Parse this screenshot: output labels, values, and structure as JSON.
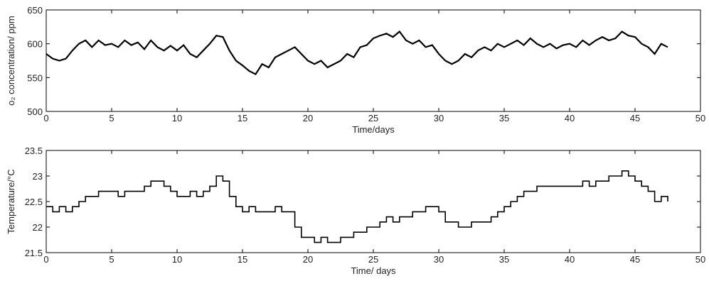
{
  "chart_data": [
    {
      "type": "line",
      "xlabel": "Time/days",
      "ylabel": "o₂ concentration/ ppm",
      "xlim": [
        0,
        50
      ],
      "ylim": [
        500,
        650
      ],
      "xticks": [
        0,
        5,
        10,
        15,
        20,
        25,
        30,
        35,
        40,
        45,
        50
      ],
      "yticks": [
        500,
        550,
        600,
        650
      ],
      "x": [
        0,
        0.5,
        1,
        1.5,
        2,
        2.5,
        3,
        3.5,
        4,
        4.5,
        5,
        5.5,
        6,
        6.5,
        7,
        7.5,
        8,
        8.5,
        9,
        9.5,
        10,
        10.5,
        11,
        11.5,
        12,
        12.5,
        13,
        13.5,
        14,
        14.5,
        15,
        15.5,
        16,
        16.5,
        17,
        17.5,
        18,
        18.5,
        19,
        19.5,
        20,
        20.5,
        21,
        21.5,
        22,
        22.5,
        23,
        23.5,
        24,
        24.5,
        25,
        25.5,
        26,
        26.5,
        27,
        27.5,
        28,
        28.5,
        29,
        29.5,
        30,
        30.5,
        31,
        31.5,
        32,
        32.5,
        33,
        33.5,
        34,
        34.5,
        35,
        35.5,
        36,
        36.5,
        37,
        37.5,
        38,
        38.5,
        39,
        39.5,
        40,
        40.5,
        41,
        41.5,
        42,
        42.5,
        43,
        43.5,
        44,
        44.5,
        45,
        45.5,
        46,
        46.5,
        47,
        47.5
      ],
      "series": [
        {
          "color": "#000000",
          "values": [
            585,
            578,
            575,
            578,
            590,
            600,
            605,
            595,
            605,
            598,
            600,
            595,
            605,
            598,
            602,
            592,
            605,
            595,
            590,
            597,
            590,
            598,
            585,
            580,
            590,
            600,
            612,
            610,
            590,
            575,
            568,
            560,
            555,
            570,
            565,
            580,
            585,
            590,
            595,
            585,
            575,
            570,
            575,
            565,
            570,
            575,
            585,
            580,
            595,
            598,
            608,
            612,
            615,
            610,
            618,
            605,
            600,
            605,
            595,
            598,
            585,
            575,
            570,
            575,
            585,
            580,
            590,
            595,
            590,
            600,
            595,
            600,
            605,
            598,
            608,
            600,
            595,
            600,
            593,
            598,
            600,
            595,
            605,
            598,
            605,
            610,
            605,
            608,
            618,
            612,
            610,
            600,
            595,
            585,
            600,
            595
          ]
        }
      ]
    },
    {
      "type": "line",
      "line_style": "step",
      "xlabel": "Time/ days",
      "ylabel": "Temperature/°C",
      "xlim": [
        0,
        50
      ],
      "ylim": [
        21.5,
        23.5
      ],
      "xticks": [
        0,
        5,
        10,
        15,
        20,
        25,
        30,
        35,
        40,
        45,
        50
      ],
      "yticks": [
        21.5,
        22,
        22.5,
        23,
        23.5
      ],
      "x": [
        0,
        0.5,
        1,
        1.5,
        2,
        2.5,
        3,
        3.5,
        4,
        4.5,
        5,
        5.5,
        6,
        6.5,
        7,
        7.5,
        8,
        8.5,
        9,
        9.5,
        10,
        10.5,
        11,
        11.5,
        12,
        12.5,
        13,
        13.5,
        14,
        14.5,
        15,
        15.5,
        16,
        16.5,
        17,
        17.5,
        18,
        18.5,
        19,
        19.5,
        20,
        20.5,
        21,
        21.5,
        22,
        22.5,
        23,
        23.5,
        24,
        24.5,
        25,
        25.5,
        26,
        26.5,
        27,
        27.5,
        28,
        28.5,
        29,
        29.5,
        30,
        30.5,
        31,
        31.5,
        32,
        32.5,
        33,
        33.5,
        34,
        34.5,
        35,
        35.5,
        36,
        36.5,
        37,
        37.5,
        38,
        38.5,
        39,
        39.5,
        40,
        40.5,
        41,
        41.5,
        42,
        42.5,
        43,
        43.5,
        44,
        44.5,
        45,
        45.5,
        46,
        46.5,
        47,
        47.5
      ],
      "series": [
        {
          "color": "#000000",
          "values": [
            22.4,
            22.3,
            22.4,
            22.3,
            22.4,
            22.5,
            22.6,
            22.6,
            22.7,
            22.7,
            22.7,
            22.6,
            22.7,
            22.7,
            22.7,
            22.8,
            22.9,
            22.9,
            22.8,
            22.7,
            22.6,
            22.6,
            22.7,
            22.6,
            22.7,
            22.8,
            23.0,
            22.9,
            22.6,
            22.4,
            22.3,
            22.4,
            22.3,
            22.3,
            22.3,
            22.4,
            22.3,
            22.3,
            22.0,
            21.8,
            21.8,
            21.7,
            21.8,
            21.7,
            21.7,
            21.8,
            21.8,
            21.9,
            21.9,
            22.0,
            22.0,
            22.1,
            22.2,
            22.1,
            22.2,
            22.2,
            22.3,
            22.3,
            22.4,
            22.4,
            22.3,
            22.1,
            22.1,
            22.0,
            22.0,
            22.1,
            22.1,
            22.1,
            22.2,
            22.3,
            22.4,
            22.5,
            22.6,
            22.7,
            22.7,
            22.8,
            22.8,
            22.8,
            22.8,
            22.8,
            22.8,
            22.8,
            22.9,
            22.8,
            22.9,
            22.9,
            23.0,
            23.0,
            23.1,
            23.0,
            22.9,
            22.8,
            22.7,
            22.5,
            22.6,
            22.5
          ]
        }
      ]
    }
  ]
}
